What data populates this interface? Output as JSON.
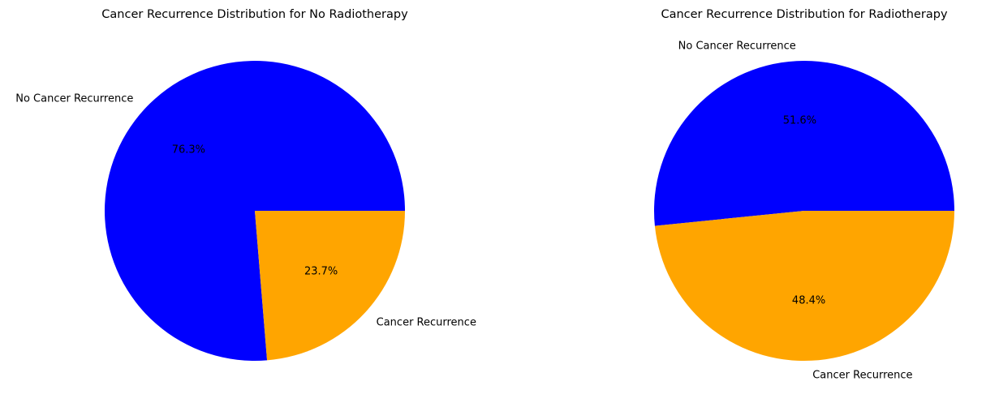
{
  "chart_data": [
    {
      "type": "pie",
      "title": "Cancer Recurrence Distribution for No Radiotherapy",
      "labels": [
        "No Cancer Recurrence",
        "Cancer Recurrence"
      ],
      "values": [
        76.3,
        23.7
      ],
      "percent_labels": [
        "76.3%",
        "23.7%"
      ],
      "colors": [
        "#0000ff",
        "#ffa500"
      ],
      "start_angle": 0,
      "direction": "counterclockwise"
    },
    {
      "type": "pie",
      "title": "Cancer Recurrence Distribution for Radiotherapy",
      "labels": [
        "No Cancer Recurrence",
        "Cancer Recurrence"
      ],
      "values": [
        51.6,
        48.4
      ],
      "percent_labels": [
        "51.6%",
        "48.4%"
      ],
      "colors": [
        "#0000ff",
        "#ffa500"
      ],
      "start_angle": 0,
      "direction": "counterclockwise"
    }
  ]
}
